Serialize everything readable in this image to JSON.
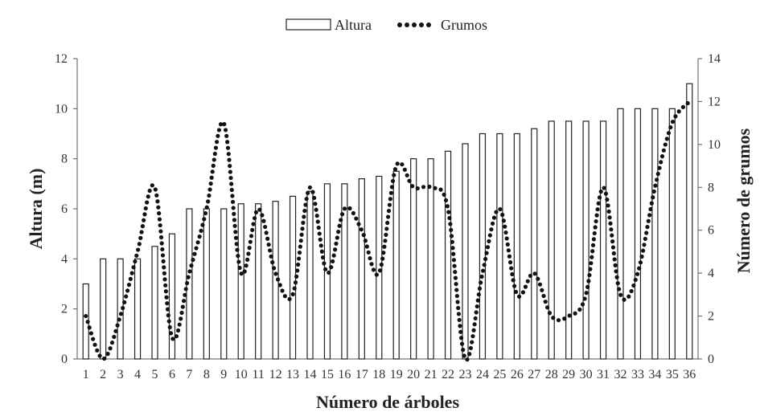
{
  "chart_data": {
    "type": "bar",
    "title": "",
    "xlabel": "Número de árboles",
    "ylabel": "Altura (m)",
    "y2label": "Número de grumos",
    "ylim": [
      0,
      12
    ],
    "y2lim": [
      0,
      14
    ],
    "yticks": [
      0,
      2,
      4,
      6,
      8,
      10,
      12
    ],
    "y2ticks": [
      0,
      2,
      4,
      6,
      8,
      10,
      12,
      14
    ],
    "grid": false,
    "legend_position": "top-center",
    "categories": [
      "1",
      "2",
      "3",
      "4",
      "5",
      "6",
      "7",
      "8",
      "9",
      "10",
      "11",
      "12",
      "13",
      "14",
      "15",
      "16",
      "17",
      "18",
      "19",
      "20",
      "21",
      "22",
      "23",
      "24",
      "25",
      "26",
      "27",
      "28",
      "29",
      "30",
      "31",
      "32",
      "33",
      "34",
      "35",
      "36"
    ],
    "series": [
      {
        "name": "Altura",
        "type": "bar",
        "axis": "left",
        "values": [
          3,
          4,
          4,
          4,
          4.5,
          5,
          6,
          6,
          6,
          6.2,
          6.2,
          6.3,
          6.5,
          6.7,
          7,
          7,
          7.2,
          7.3,
          7.5,
          8,
          8,
          8.3,
          8.6,
          9,
          9,
          9,
          9.2,
          9.5,
          9.5,
          9.5,
          9.5,
          10,
          10,
          10,
          10,
          11
        ]
      },
      {
        "name": "Grumos",
        "type": "line",
        "style": "dotted",
        "axis": "right",
        "values": [
          2,
          0,
          2,
          5,
          8,
          1,
          4,
          7,
          11,
          4,
          7,
          4,
          3,
          8,
          4,
          7,
          6,
          4,
          9,
          8,
          8,
          7,
          0,
          4,
          7,
          3,
          4,
          2,
          2,
          3,
          8,
          3,
          4,
          8,
          11,
          12
        ]
      }
    ]
  }
}
